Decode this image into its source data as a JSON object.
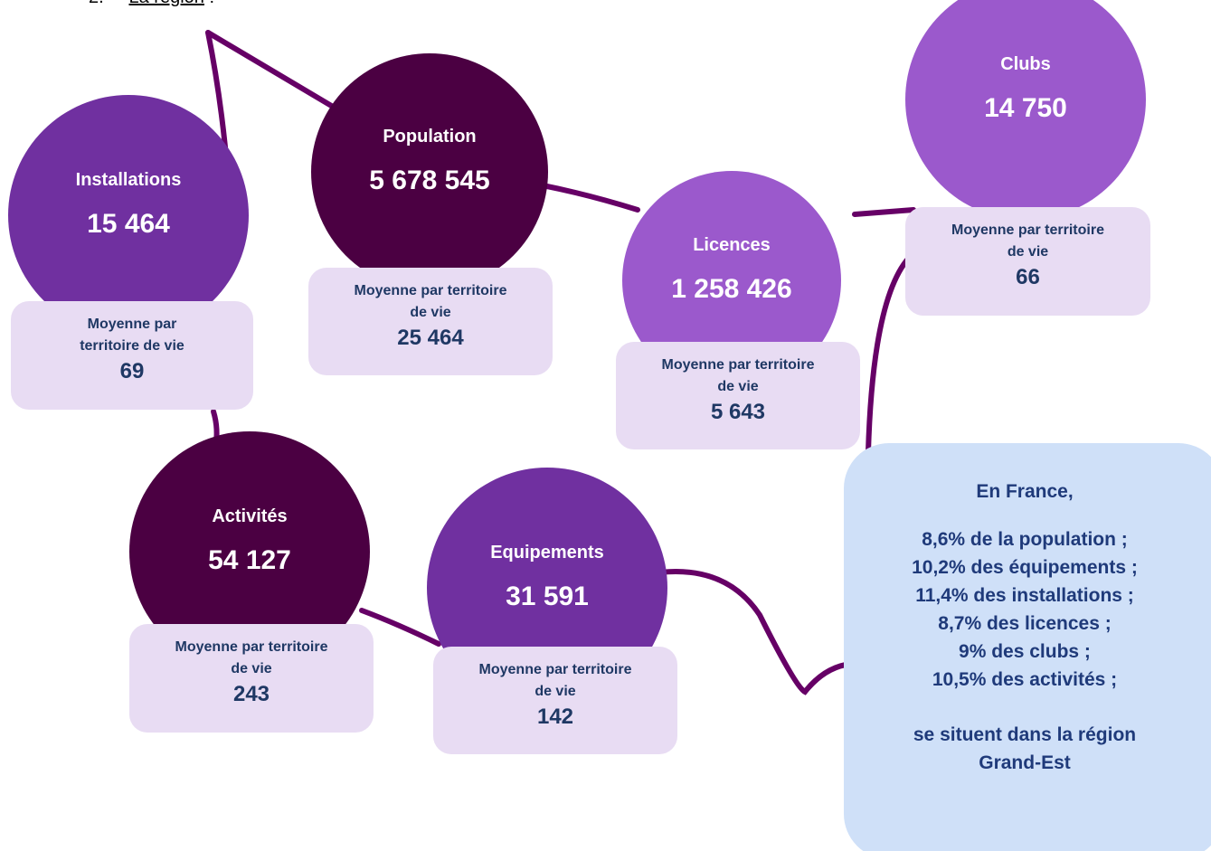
{
  "header": {
    "number": "2.",
    "title": "La région",
    "suffix": ":"
  },
  "nodes": [
    {
      "label": "Installations",
      "value": "15 464",
      "caption": "Moyenne par territoire de vie",
      "average": "69"
    },
    {
      "label": "Population",
      "value": "5 678 545",
      "caption": "Moyenne par territoire de vie",
      "average": "25 464"
    },
    {
      "label": "Licences",
      "value": "1 258 426",
      "caption": "Moyenne par territoire de vie",
      "average": "5 643"
    },
    {
      "label": "Clubs",
      "value": "14 750",
      "caption": "Moyenne par territoire de vie",
      "average": "66"
    },
    {
      "label": "Activités",
      "value": "54 127",
      "caption": "Moyenne par territoire de vie",
      "average": "243"
    },
    {
      "label": "Equipements",
      "value": "31 591",
      "caption": "Moyenne par territoire de vie",
      "average": "142"
    }
  ],
  "summary": {
    "title": "En France,",
    "items": [
      "8,6% de la population ;",
      "10,2% des équipements ;",
      "11,4% des installations ;",
      "8,7% des licences ;",
      "9% des clubs ;",
      "10,5% des activités ;"
    ],
    "footer": "se situent dans la région Grand-Est"
  }
}
